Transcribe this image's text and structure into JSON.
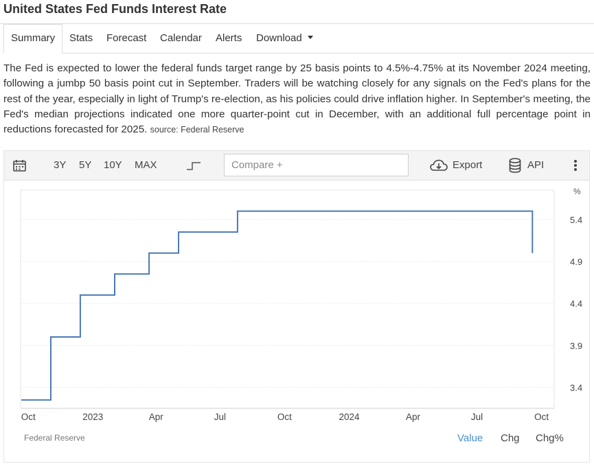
{
  "page": {
    "title": "United States Fed Funds Interest Rate"
  },
  "tabs": [
    {
      "label": "Summary",
      "active": true
    },
    {
      "label": "Stats"
    },
    {
      "label": "Forecast"
    },
    {
      "label": "Calendar"
    },
    {
      "label": "Alerts"
    },
    {
      "label": "Download"
    }
  ],
  "description": {
    "text": "The Fed is expected to lower the federal funds target range by 25 basis points to 4.5%-4.75% at its November 2024 meeting, following a jumbp 50 basis point cut in September. Traders will be watching closely for any signals on the Fed's plans for the rest of the year, especially in light of Trump's re-election, as his policies could drive inflation higher. In September's meeting, the Fed's median projections indicated one more quarter-point cut in December, with an additional full percentage point in reductions forecasted for 2025.",
    "source": "source: Federal Reserve"
  },
  "toolbar": {
    "ranges": [
      "3Y",
      "5Y",
      "10Y",
      "MAX"
    ],
    "compare_placeholder": "Compare +",
    "export_label": "Export",
    "api_label": "API",
    "icons": [
      "calendar-icon",
      "step-chart-icon",
      "cloud-download-icon",
      "database-icon",
      "more-vertical-icon"
    ]
  },
  "chart_data": {
    "type": "line",
    "step": true,
    "unit": "%",
    "ylim": [
      3.15,
      5.75
    ],
    "y_ticks": [
      3.4,
      3.9,
      4.4,
      4.9,
      5.4
    ],
    "x_range": [
      "2022-09-20",
      "2024-10-19"
    ],
    "x_ticks": [
      {
        "label": "Oct",
        "date": "2022-10-01"
      },
      {
        "label": "2023",
        "date": "2023-01-01"
      },
      {
        "label": "Apr",
        "date": "2023-04-01"
      },
      {
        "label": "Jul",
        "date": "2023-07-01"
      },
      {
        "label": "Oct",
        "date": "2023-10-01"
      },
      {
        "label": "2024",
        "date": "2024-01-01"
      },
      {
        "label": "Apr",
        "date": "2024-04-01"
      },
      {
        "label": "Jul",
        "date": "2024-07-01"
      },
      {
        "label": "Oct",
        "date": "2024-10-01"
      }
    ],
    "grid": true,
    "series": [
      {
        "color": "#4a7ab5",
        "points": [
          {
            "x": "2022-09-21",
            "y": 3.25
          },
          {
            "x": "2022-11-02",
            "y": 4.0
          },
          {
            "x": "2022-12-14",
            "y": 4.5
          },
          {
            "x": "2023-02-01",
            "y": 4.75
          },
          {
            "x": "2023-03-22",
            "y": 5.0
          },
          {
            "x": "2023-05-03",
            "y": 5.25
          },
          {
            "x": "2023-07-26",
            "y": 5.5
          },
          {
            "x": "2024-09-18",
            "y": 5.0
          }
        ],
        "end_date": "2024-09-18"
      }
    ]
  },
  "footer": {
    "source": "Federal Reserve",
    "options": [
      {
        "label": "Value",
        "selected": true
      },
      {
        "label": "Chg"
      },
      {
        "label": "Chg%"
      }
    ]
  },
  "colors": {
    "accent": "#4a90c9",
    "line": "#4a7ab5"
  }
}
